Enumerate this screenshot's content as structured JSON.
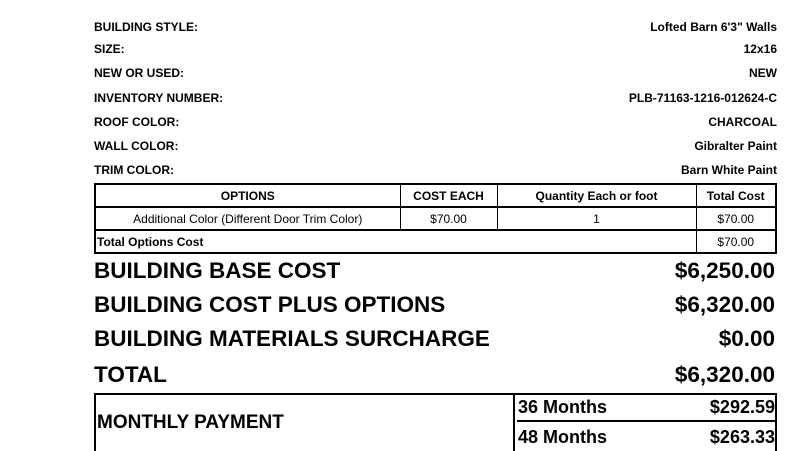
{
  "details": [
    {
      "label": "BUILDING STYLE:",
      "value": "Lofted Barn 6'3\" Walls"
    },
    {
      "label": "SIZE:",
      "value": "12x16"
    },
    {
      "label": "NEW OR USED:",
      "value": "NEW"
    },
    {
      "label": "INVENTORY NUMBER:",
      "value": "PLB-71163-1216-012624-C"
    },
    {
      "label": "ROOF COLOR:",
      "value": "CHARCOAL"
    },
    {
      "label": "WALL COLOR:",
      "value": "Gibralter Paint"
    },
    {
      "label": "TRIM COLOR:",
      "value": "Barn White Paint"
    }
  ],
  "options_table": {
    "headers": [
      "OPTIONS",
      "COST EACH",
      "Quantity Each or foot",
      "Total Cost"
    ],
    "rows": [
      [
        "Additional Color (Different Door Trim Color)",
        "$70.00",
        "1",
        "$70.00"
      ]
    ],
    "total_label": "Total Options Cost",
    "total_value": "$70.00"
  },
  "summary": [
    {
      "label": "BUILDING BASE COST",
      "value": "$6,250.00"
    },
    {
      "label": "BUILDING COST PLUS OPTIONS",
      "value": "$6,320.00"
    },
    {
      "label": "BUILDING MATERIALS SURCHARGE",
      "value": "$0.00"
    },
    {
      "label": "TOTAL",
      "value": "$6,320.00"
    }
  ],
  "monthly": {
    "label": "MONTHLY PAYMENT",
    "plans": [
      {
        "term": "36 Months",
        "amount": "$292.59"
      },
      {
        "term": "48 Months",
        "amount": "$263.33"
      }
    ]
  }
}
